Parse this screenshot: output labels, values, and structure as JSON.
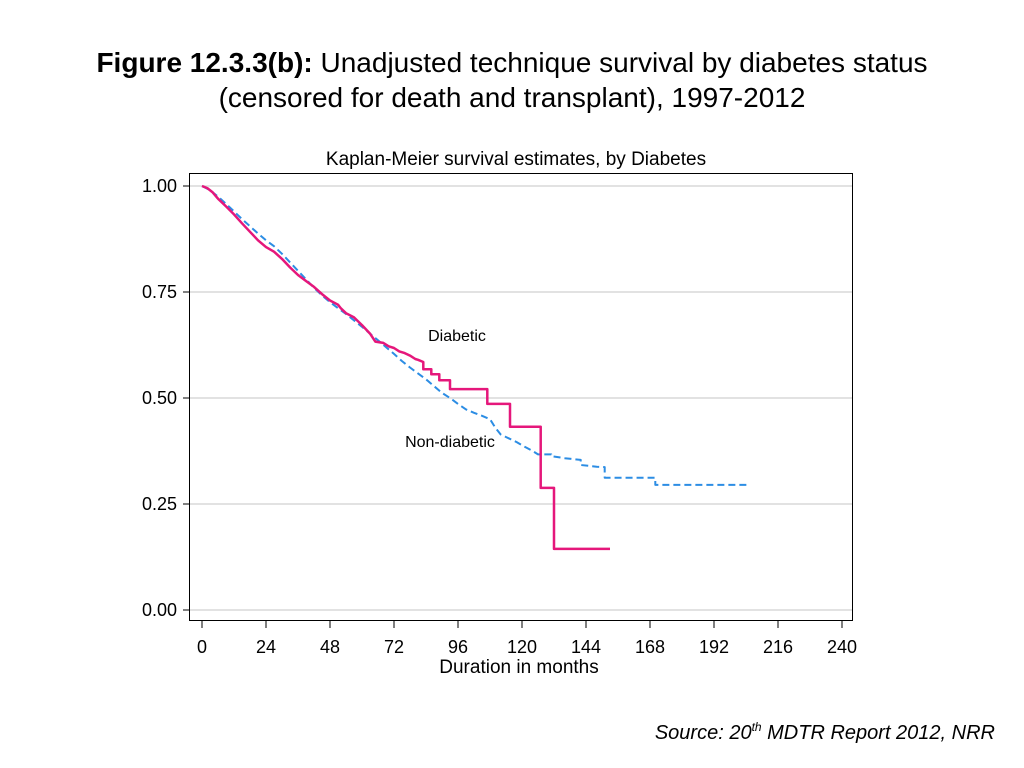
{
  "title": {
    "label": "Figure 12.3.3(b):",
    "line1": "Unadjusted technique survival by diabetes status",
    "line2": "(censored for death and transplant), 1997-2012"
  },
  "source": {
    "prefix": "Source: 20",
    "superscript": "th",
    "suffix": " MDTR Report 2012, NRR"
  },
  "chart_data": {
    "type": "line",
    "title": "Kaplan-Meier survival estimates, by Diabetes",
    "xlabel": "Duration in months",
    "xlim": [
      0,
      240
    ],
    "ylim": [
      0,
      1
    ],
    "x_ticks": [
      0,
      24,
      48,
      72,
      96,
      120,
      144,
      168,
      192,
      216,
      240
    ],
    "x_tick_labels": [
      "0",
      "24",
      "48",
      "72",
      "96",
      "120",
      "144",
      "168",
      "192",
      "216",
      "240"
    ],
    "y_ticks": [
      0,
      0.25,
      0.5,
      0.75,
      1
    ],
    "y_tick_labels": [
      "0.00",
      "0.25",
      "0.50",
      "0.75",
      "1.00"
    ],
    "grid": "horizontal",
    "series": [
      {
        "name": "Non-diabetic",
        "color": "#2C8DE4",
        "line_style": "dashed",
        "x": [
          0,
          3,
          6,
          9,
          12,
          15,
          18,
          21,
          24,
          27,
          30,
          33,
          36,
          39,
          42,
          45,
          48,
          51,
          54,
          57,
          60,
          63,
          66,
          69,
          72,
          75,
          78,
          81,
          84,
          87,
          90,
          93,
          96,
          99,
          102,
          105,
          108,
          110,
          112,
          115,
          118,
          121,
          124,
          126,
          131,
          131,
          136,
          142,
          142,
          148,
          151,
          151,
          170,
          170,
          205
        ],
        "y": [
          1.0,
          0.99,
          0.975,
          0.958,
          0.94,
          0.922,
          0.905,
          0.888,
          0.872,
          0.858,
          0.84,
          0.82,
          0.8,
          0.78,
          0.76,
          0.742,
          0.726,
          0.712,
          0.698,
          0.683,
          0.668,
          0.652,
          0.636,
          0.62,
          0.604,
          0.587,
          0.572,
          0.558,
          0.544,
          0.528,
          0.512,
          0.5,
          0.486,
          0.473,
          0.465,
          0.458,
          0.45,
          0.43,
          0.414,
          0.405,
          0.396,
          0.385,
          0.375,
          0.367,
          0.367,
          0.363,
          0.358,
          0.354,
          0.342,
          0.338,
          0.337,
          0.312,
          0.312,
          0.295,
          0.295
        ]
      },
      {
        "name": "Diabetic",
        "color": "#E5177B",
        "line_style": "solid",
        "x": [
          0,
          2,
          4,
          6,
          9,
          12,
          15,
          18,
          21,
          24,
          27,
          30,
          33,
          36,
          39,
          42,
          45,
          48,
          51,
          52,
          54,
          57,
          60,
          63,
          65,
          68,
          70,
          72,
          74,
          76,
          78,
          80,
          81,
          83,
          83,
          86,
          86,
          89,
          89,
          93,
          93,
          107,
          107,
          115.5,
          115.5,
          127,
          127,
          132,
          132,
          153
        ],
        "y": [
          1.0,
          0.995,
          0.985,
          0.97,
          0.952,
          0.933,
          0.912,
          0.892,
          0.872,
          0.856,
          0.845,
          0.828,
          0.808,
          0.79,
          0.776,
          0.762,
          0.745,
          0.73,
          0.72,
          0.712,
          0.7,
          0.69,
          0.672,
          0.652,
          0.633,
          0.63,
          0.622,
          0.618,
          0.61,
          0.606,
          0.6,
          0.592,
          0.59,
          0.585,
          0.568,
          0.568,
          0.556,
          0.556,
          0.542,
          0.542,
          0.521,
          0.521,
          0.486,
          0.486,
          0.432,
          0.432,
          0.288,
          0.288,
          0.144,
          0.144
        ]
      }
    ]
  }
}
